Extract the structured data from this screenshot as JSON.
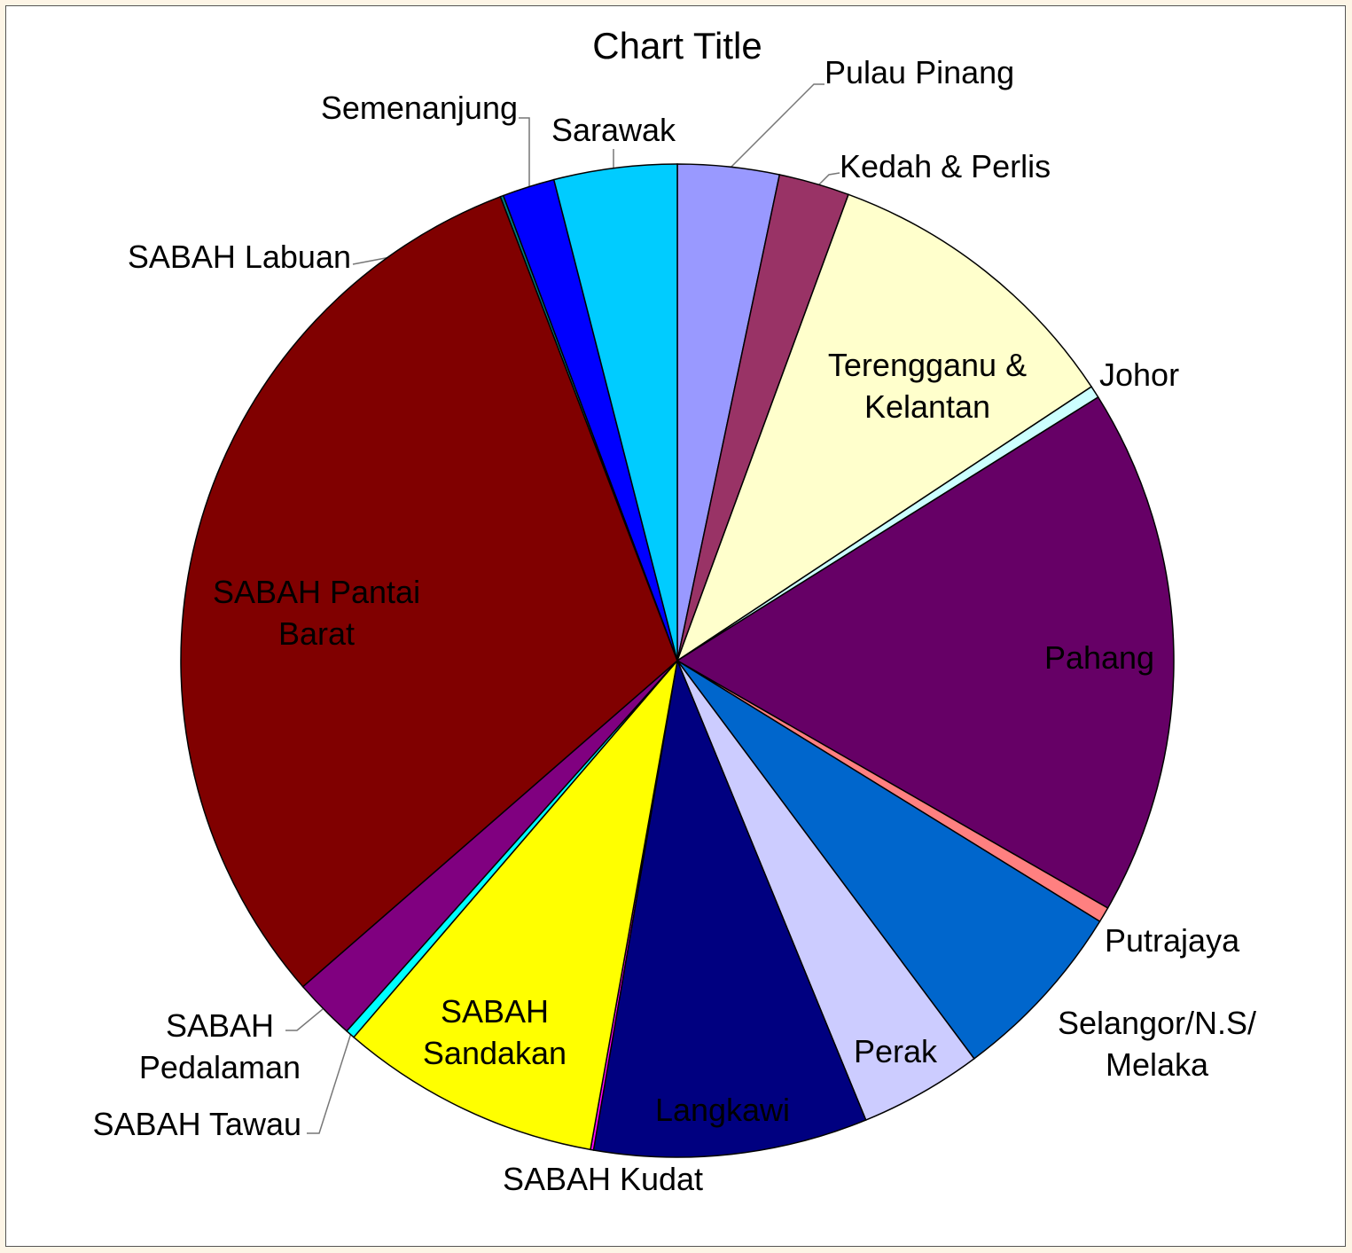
{
  "chart_data": {
    "type": "pie",
    "title": "Chart Title",
    "categories": [
      "Pulau Pinang",
      "Kedah & Perlis",
      "Terengganu & Kelantan",
      "Johor",
      "Pahang",
      "Putrajaya",
      "Selangor/N.S/ Melaka",
      "Perak",
      "Langkawi",
      "SABAH Kudat",
      "SABAH Sandakan",
      "SABAH Tawau",
      "SABAH Pedalaman",
      "SABAH Pantai Barat",
      "SABAH Labuan",
      "Semenanjung",
      "Sarawak"
    ],
    "values": [
      3.3,
      2.3,
      10.1,
      0.4,
      17.2,
      0.5,
      6.0,
      4.0,
      8.9,
      0.1,
      8.5,
      0.3,
      2.0,
      30.6,
      0.1,
      1.7,
      4.0
    ],
    "colors": [
      "#9999ff",
      "#993366",
      "#ffffcc",
      "#ccffff",
      "#660066",
      "#ff8080",
      "#0066cc",
      "#ccccff",
      "#000080",
      "#ff00ff",
      "#ffff00",
      "#00ffff",
      "#800080",
      "#800000",
      "#008080",
      "#0000ff",
      "#00ccff"
    ]
  }
}
